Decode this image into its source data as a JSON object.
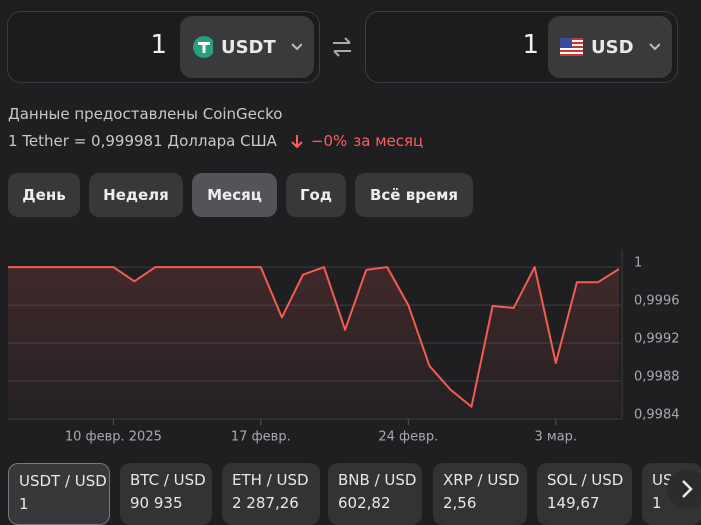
{
  "converter": {
    "from": {
      "amount": "1",
      "currency": "USDT"
    },
    "to": {
      "amount": "1",
      "currency": "USD"
    }
  },
  "source": "Данные предоставлены CoinGecko",
  "rate": {
    "text": "1 Tether = 0,999981 Доллара США",
    "change": "−0%",
    "period": "за месяц"
  },
  "periods": [
    "День",
    "Неделя",
    "Месяц",
    "Год",
    "Всё время"
  ],
  "active_period": 2,
  "chart_data": {
    "type": "line",
    "categories": [
      null,
      null,
      null,
      null,
      null,
      "10 февр. 2025",
      null,
      null,
      null,
      null,
      null,
      null,
      "17 февр.",
      null,
      null,
      null,
      null,
      null,
      null,
      "24 февр.",
      null,
      null,
      null,
      null,
      null,
      null,
      "3 мар.",
      null,
      null,
      null
    ],
    "series": [
      {
        "color": "#f25c54",
        "values": [
          1,
          1,
          1,
          1,
          1,
          1,
          0.99985,
          1,
          1,
          1,
          1,
          1,
          1,
          0.99947,
          0.99992,
          1,
          0.99934,
          0.99997,
          1,
          0.9996,
          0.99896,
          0.99871,
          0.99853,
          0.99959,
          0.99957,
          1,
          0.99899,
          0.99984,
          0.99984,
          0.99998
        ]
      }
    ],
    "ylim": [
      0.9984,
      1.00018
    ],
    "yticks": [
      1,
      {
        "value": 0.9996,
        "label": "0,9996"
      },
      {
        "value": 0.9992,
        "label": "0,9992"
      },
      {
        "value": 0.9988,
        "label": "0,9988"
      },
      {
        "value": 0.9984,
        "label": "0,9984"
      }
    ],
    "grid": true
  },
  "tickers": [
    {
      "pair": "USDT / USD",
      "price": "1"
    },
    {
      "pair": "BTC / USD",
      "price": "90 935"
    },
    {
      "pair": "ETH / USD",
      "price": "2 287,26"
    },
    {
      "pair": "BNB / USD",
      "price": "602,82"
    },
    {
      "pair": "XRP / USD",
      "price": "2,56"
    },
    {
      "pair": "SOL / USD",
      "price": "149,67"
    },
    {
      "pair": "USDC / USD",
      "price": "1"
    }
  ]
}
